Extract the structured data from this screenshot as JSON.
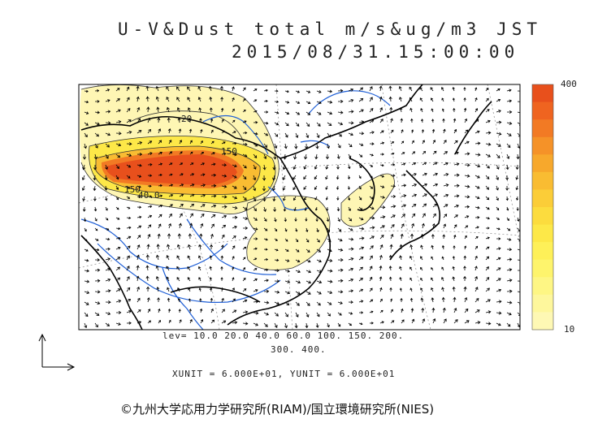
{
  "title": {
    "line1": "U-V&Dust total m/s&ug/m3 JST",
    "line2": "2015/08/31.15:00:00"
  },
  "contour_labels": [
    "150",
    "40.0",
    "150",
    "20"
  ],
  "levels_line1": "lev= 10.0 20.0 40.0 60.0 100. 150. 200.",
  "levels_line2": "300. 400.",
  "units_text": "XUNIT = 6.000E+01, YUNIT = 6.000E+01",
  "colorbar": {
    "max_label": "400",
    "min_label": "10",
    "colors": [
      "#e8501c",
      "#ef6420",
      "#f27a24",
      "#f59228",
      "#f7a82c",
      "#f9bc32",
      "#fbcd38",
      "#fcdc3e",
      "#fde848",
      "#fef058",
      "#fef46c",
      "#fef684",
      "#fef79c",
      "#fef8b4"
    ]
  },
  "credit": "©九州大学応用力学研究所(RIAM)/国立環境研究所(NIES)"
}
